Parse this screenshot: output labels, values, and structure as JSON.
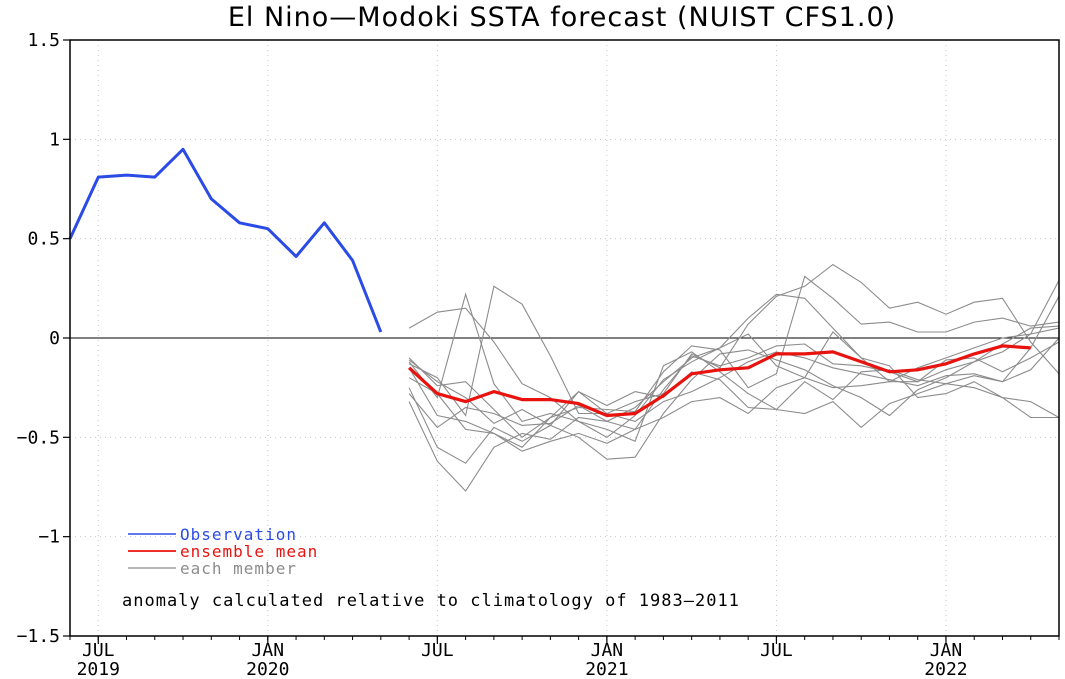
{
  "chart_data": {
    "type": "line",
    "title": "El Nino—Modoki SSTA forecast (NUIST CFS1.0)",
    "note": "anomaly calculated relative to climatology of 1983–2011",
    "xlabel": "",
    "ylabel": "",
    "ylim": [
      -1.5,
      1.5
    ],
    "yticks": [
      1.5,
      1,
      0.5,
      0,
      -0.5,
      -1,
      -1.5
    ],
    "ytick_labels": [
      "1.5",
      "1",
      "0.5",
      "0",
      "−0.5",
      "−1",
      "−1.5"
    ],
    "xlim": [
      "2019-06",
      "2022-05"
    ],
    "xticks": [
      {
        "x": "2019-07",
        "month": "JUL",
        "year": "2019"
      },
      {
        "x": "2020-01",
        "month": "JAN",
        "year": "2020"
      },
      {
        "x": "2020-07",
        "month": "JUL",
        "year": ""
      },
      {
        "x": "2021-01",
        "month": "JAN",
        "year": "2021"
      },
      {
        "x": "2021-07",
        "month": "JUL",
        "year": ""
      },
      {
        "x": "2022-01",
        "month": "JAN",
        "year": "2022"
      }
    ],
    "zero_line": true,
    "grid": "dotted",
    "legend_placement": "bottom-left",
    "colors": {
      "observation": "#2a4be6",
      "ensemble_mean": "#e8120f",
      "member": "#8c8c8c",
      "frame": "#000000",
      "grid": "#c8c8c8"
    },
    "series": [
      {
        "name": "Observation",
        "role": "observation",
        "x": [
          "2019-06",
          "2019-07",
          "2019-08",
          "2019-09",
          "2019-10",
          "2019-11",
          "2019-12",
          "2020-01",
          "2020-02",
          "2020-03",
          "2020-04",
          "2020-05"
        ],
        "values": [
          0.5,
          0.81,
          0.82,
          0.81,
          0.95,
          0.7,
          0.58,
          0.55,
          0.41,
          0.58,
          0.39,
          0.03
        ]
      },
      {
        "name": "ensemble mean",
        "role": "ensemble_mean",
        "x": [
          "2020-06",
          "2020-07",
          "2020-08",
          "2020-09",
          "2020-10",
          "2020-11",
          "2020-12",
          "2021-01",
          "2021-02",
          "2021-03",
          "2021-04",
          "2021-05",
          "2021-06",
          "2021-07",
          "2021-08",
          "2021-09",
          "2021-10",
          "2021-11",
          "2021-12",
          "2022-01",
          "2022-02",
          "2022-03",
          "2022-04"
        ],
        "values": [
          -0.15,
          -0.28,
          -0.32,
          -0.27,
          -0.31,
          -0.31,
          -0.33,
          -0.39,
          -0.38,
          -0.29,
          -0.18,
          -0.16,
          -0.15,
          -0.08,
          -0.08,
          -0.07,
          -0.12,
          -0.17,
          -0.16,
          -0.13,
          -0.08,
          -0.04,
          -0.05
        ]
      },
      {
        "name": "each member",
        "role": "member_legend"
      }
    ],
    "members_x": [
      "2020-06",
      "2020-07",
      "2020-08",
      "2020-09",
      "2020-10",
      "2020-11",
      "2020-12",
      "2021-01",
      "2021-02",
      "2021-03",
      "2021-04",
      "2021-05",
      "2021-06",
      "2021-07",
      "2021-08",
      "2021-09",
      "2021-10",
      "2021-11",
      "2021-12",
      "2022-01",
      "2022-02",
      "2022-03",
      "2022-04",
      "2022-05"
    ],
    "members": [
      [
        0.05,
        0.13,
        0.15,
        -0.02,
        -0.23,
        -0.3,
        -0.42,
        -0.5,
        -0.39,
        -0.21,
        -0.12,
        -0.05,
        0.1,
        0.22,
        0.2,
        0.05,
        -0.1,
        -0.22,
        -0.22,
        -0.16,
        -0.12,
        -0.03,
        0.05,
        0.06
      ],
      [
        -0.12,
        -0.3,
        0.22,
        -0.23,
        -0.42,
        -0.38,
        -0.42,
        -0.46,
        -0.52,
        -0.14,
        -0.07,
        -0.17,
        -0.28,
        -0.36,
        -0.22,
        -0.31,
        -0.17,
        -0.16,
        -0.21,
        -0.23,
        -0.19,
        -0.22,
        -0.05,
        0.21
      ],
      [
        -0.13,
        -0.2,
        -0.39,
        0.26,
        0.17,
        -0.09,
        -0.38,
        -0.38,
        -0.32,
        -0.28,
        -0.08,
        -0.15,
        0.07,
        0.21,
        0.26,
        0.37,
        0.28,
        0.15,
        0.18,
        0.12,
        0.18,
        0.2,
        -0.02,
        -0.18
      ],
      [
        -0.25,
        -0.55,
        -0.63,
        -0.45,
        -0.52,
        -0.44,
        -0.27,
        -0.38,
        -0.42,
        -0.32,
        -0.27,
        -0.2,
        -0.12,
        -0.07,
        -0.1,
        -0.15,
        -0.18,
        -0.21,
        -0.24,
        -0.19,
        -0.18,
        -0.22,
        -0.16,
        0.0
      ],
      [
        -0.32,
        -0.62,
        -0.77,
        -0.55,
        -0.48,
        -0.51,
        -0.4,
        -0.42,
        -0.35,
        -0.22,
        -0.1,
        -0.05,
        0.02,
        -0.14,
        -0.2,
        -0.25,
        -0.24,
        -0.22,
        -0.15,
        -0.1,
        -0.05,
        0.0,
        0.02,
        0.29
      ],
      [
        -0.11,
        -0.22,
        -0.3,
        -0.43,
        -0.36,
        -0.44,
        -0.5,
        -0.61,
        -0.6,
        -0.38,
        -0.21,
        -0.08,
        -0.06,
        -0.11,
        -0.16,
        -0.24,
        -0.3,
        -0.39,
        -0.26,
        -0.2,
        -0.12,
        -0.07,
        0.02,
        0.05
      ],
      [
        -0.2,
        -0.28,
        -0.46,
        -0.48,
        -0.57,
        -0.52,
        -0.48,
        -0.53,
        -0.46,
        -0.4,
        -0.32,
        -0.3,
        -0.38,
        -0.25,
        -0.2,
        0.03,
        -0.1,
        -0.14,
        -0.3,
        -0.28,
        -0.22,
        -0.3,
        -0.4,
        -0.4
      ],
      [
        -0.15,
        -0.39,
        -0.42,
        -0.48,
        -0.55,
        -0.4,
        -0.35,
        -0.36,
        -0.37,
        -0.17,
        -0.04,
        -0.06,
        -0.25,
        -0.18,
        0.31,
        0.2,
        0.07,
        0.08,
        0.03,
        0.03,
        0.08,
        0.1,
        0.06,
        0.08
      ],
      [
        -0.1,
        -0.24,
        -0.22,
        -0.36,
        -0.5,
        -0.4,
        -0.27,
        -0.34,
        -0.27,
        -0.3,
        -0.17,
        -0.21,
        -0.35,
        -0.36,
        -0.38,
        -0.32,
        -0.45,
        -0.33,
        -0.28,
        -0.23,
        -0.25,
        -0.3,
        -0.32,
        -0.4
      ],
      [
        -0.28,
        -0.45,
        -0.35,
        -0.38,
        -0.44,
        -0.43,
        -0.34,
        -0.42,
        -0.46,
        -0.26,
        -0.09,
        -0.14,
        -0.1,
        -0.04,
        -0.03,
        -0.13,
        -0.14,
        -0.17,
        -0.22,
        -0.11,
        -0.1,
        -0.17,
        -0.1,
        -0.02
      ]
    ]
  }
}
